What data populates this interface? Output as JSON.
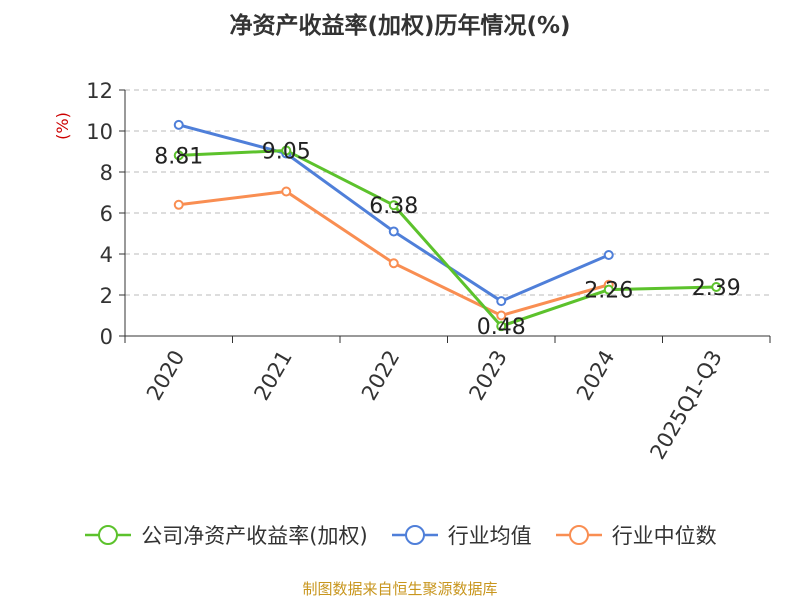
{
  "title": "净资产收益率(加权)历年情况(%)",
  "source": "制图数据来自恒生聚源数据库",
  "chart_data": {
    "type": "line",
    "title": "净资产收益率(加权)历年情况(%)",
    "ylabel": "(%)",
    "ylim": [
      0,
      12
    ],
    "yticks": [
      0,
      2,
      4,
      6,
      8,
      10,
      12
    ],
    "grid": "dashed horizontal",
    "legend_position": "bottom",
    "categories": [
      "2020",
      "2021",
      "2022",
      "2023",
      "2024",
      "2025Q1-Q3"
    ],
    "series": [
      {
        "name": "公司净资产收益率(加权)",
        "color": "#5cc22c",
        "values": [
          8.81,
          9.05,
          6.38,
          0.48,
          2.26,
          2.39
        ],
        "labels": [
          "8.81",
          "9.05",
          "6.38",
          "0.48",
          "2.26",
          "2.39"
        ]
      },
      {
        "name": "行业均值",
        "color": "#4f7fd9",
        "values": [
          10.3,
          8.9,
          5.1,
          1.7,
          3.95,
          null
        ]
      },
      {
        "name": "行业中位数",
        "color": "#f98e52",
        "values": [
          6.4,
          7.05,
          3.55,
          1.0,
          2.5,
          null
        ]
      }
    ]
  }
}
